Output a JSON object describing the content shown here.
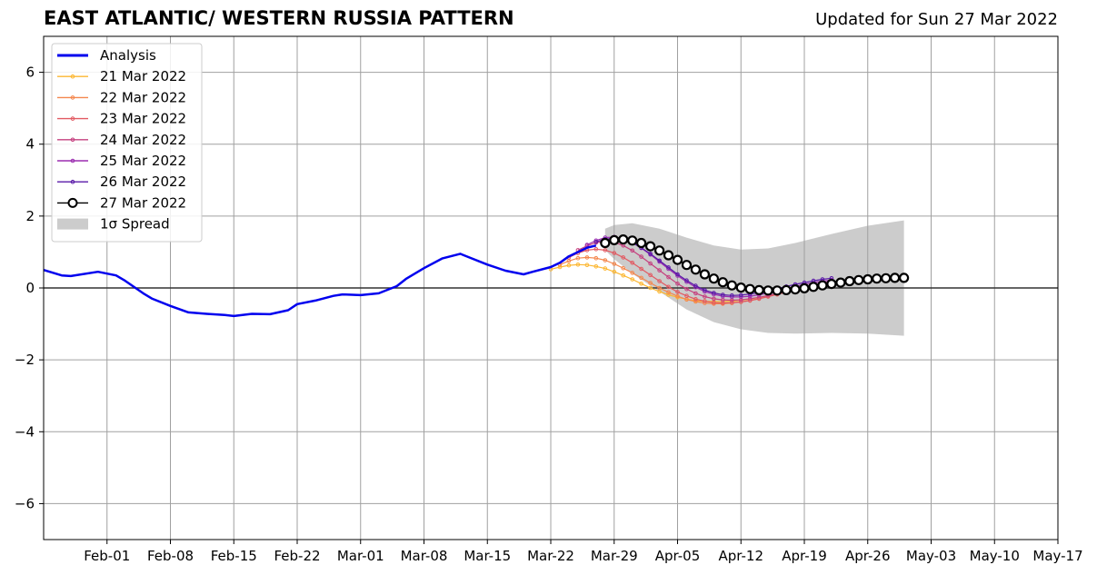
{
  "chart_data": {
    "type": "line",
    "title": "EAST ATLANTIC/ WESTERN RUSSIA PATTERN",
    "subtitle": "Updated for Sun 27 Mar 2022",
    "xlabel": "",
    "ylabel": "",
    "xlim": [
      "2022-01-25",
      "2022-05-17"
    ],
    "ylim": [
      -7,
      7
    ],
    "yticks": [
      -6,
      -4,
      -2,
      0,
      2,
      4,
      6
    ],
    "ytick_labels": [
      "−6",
      "−4",
      "−2",
      "0",
      "2",
      "4",
      "6"
    ],
    "xticks": [
      "2022-02-01",
      "2022-02-08",
      "2022-02-15",
      "2022-02-22",
      "2022-03-01",
      "2022-03-08",
      "2022-03-15",
      "2022-03-22",
      "2022-03-29",
      "2022-04-05",
      "2022-04-12",
      "2022-04-19",
      "2022-04-26",
      "2022-05-03",
      "2022-05-10",
      "2022-05-17"
    ],
    "xtick_labels": [
      "Feb-01",
      "Feb-08",
      "Feb-15",
      "Feb-22",
      "Mar-01",
      "Mar-08",
      "Mar-15",
      "Mar-22",
      "Mar-29",
      "Apr-05",
      "Apr-12",
      "Apr-19",
      "Apr-26",
      "May-03",
      "May-10",
      "May-17"
    ],
    "grid": true,
    "zero_line": true,
    "legend_position": "top-left",
    "analysis": {
      "name": "Analysis",
      "color": "#0000ee",
      "x": [
        "2022-01-25",
        "2022-01-27",
        "2022-01-28",
        "2022-01-31",
        "2022-02-02",
        "2022-02-03",
        "2022-02-05",
        "2022-02-06",
        "2022-02-08",
        "2022-02-10",
        "2022-02-12",
        "2022-02-14",
        "2022-02-15",
        "2022-02-17",
        "2022-02-19",
        "2022-02-21",
        "2022-02-22",
        "2022-02-24",
        "2022-02-26",
        "2022-02-27",
        "2022-03-01",
        "2022-03-03",
        "2022-03-05",
        "2022-03-06",
        "2022-03-08",
        "2022-03-10",
        "2022-03-12",
        "2022-03-13",
        "2022-03-15",
        "2022-03-17",
        "2022-03-19",
        "2022-03-20",
        "2022-03-22",
        "2022-03-23",
        "2022-03-24",
        "2022-03-26",
        "2022-03-27"
      ],
      "values": [
        0.5,
        0.35,
        0.33,
        0.45,
        0.35,
        0.2,
        -0.15,
        -0.3,
        -0.5,
        -0.68,
        -0.72,
        -0.75,
        -0.78,
        -0.72,
        -0.73,
        -0.62,
        -0.45,
        -0.35,
        -0.22,
        -0.18,
        -0.2,
        -0.15,
        0.05,
        0.25,
        0.55,
        0.82,
        0.95,
        0.85,
        0.65,
        0.48,
        0.38,
        0.45,
        0.58,
        0.7,
        0.88,
        1.12,
        1.18
      ]
    },
    "series": [
      {
        "name": "21 Mar 2022",
        "color": "#fcb732",
        "start": "2022-03-22",
        "values": [
          0.52,
          0.58,
          0.63,
          0.65,
          0.64,
          0.6,
          0.54,
          0.45,
          0.35,
          0.24,
          0.12,
          0.0,
          -0.1,
          -0.19,
          -0.26,
          -0.31,
          -0.35,
          -0.37,
          -0.38,
          -0.38,
          -0.37,
          -0.34,
          -0.31,
          -0.27,
          -0.22,
          -0.17,
          -0.11,
          -0.05,
          0.01,
          0.06,
          0.11,
          0.15
        ]
      },
      {
        "name": "22 Mar 2022",
        "color": "#f4874e",
        "start": "2022-03-23",
        "values": [
          0.65,
          0.75,
          0.83,
          0.85,
          0.83,
          0.77,
          0.67,
          0.55,
          0.42,
          0.28,
          0.14,
          0.0,
          -0.12,
          -0.23,
          -0.32,
          -0.38,
          -0.42,
          -0.44,
          -0.44,
          -0.42,
          -0.39,
          -0.35,
          -0.3,
          -0.24,
          -0.18,
          -0.11,
          -0.05,
          0.01,
          0.07,
          0.12,
          0.16
        ]
      },
      {
        "name": "23 Mar 2022",
        "color": "#e25a62",
        "start": "2022-03-24",
        "values": [
          0.85,
          0.97,
          1.05,
          1.08,
          1.05,
          0.97,
          0.85,
          0.7,
          0.53,
          0.36,
          0.19,
          0.03,
          -0.11,
          -0.22,
          -0.31,
          -0.37,
          -0.41,
          -0.42,
          -0.41,
          -0.39,
          -0.35,
          -0.3,
          -0.24,
          -0.18,
          -0.12,
          -0.06,
          0.0,
          0.06,
          0.11,
          0.15
        ]
      },
      {
        "name": "24 Mar 2022",
        "color": "#c5407f",
        "start": "2022-03-25",
        "values": [
          1.05,
          1.17,
          1.26,
          1.3,
          1.27,
          1.18,
          1.04,
          0.87,
          0.68,
          0.49,
          0.3,
          0.12,
          -0.03,
          -0.15,
          -0.24,
          -0.3,
          -0.33,
          -0.34,
          -0.33,
          -0.3,
          -0.26,
          -0.21,
          -0.15,
          -0.09,
          -0.03,
          0.03,
          0.09,
          0.14,
          0.18
        ]
      },
      {
        "name": "25 Mar 2022",
        "color": "#9b2db0",
        "start": "2022-03-26",
        "values": [
          1.2,
          1.32,
          1.4,
          1.42,
          1.37,
          1.26,
          1.11,
          0.93,
          0.73,
          0.53,
          0.34,
          0.17,
          0.02,
          -0.1,
          -0.18,
          -0.23,
          -0.25,
          -0.25,
          -0.23,
          -0.19,
          -0.14,
          -0.08,
          -0.02,
          0.04,
          0.1,
          0.15,
          0.19,
          0.22
        ]
      },
      {
        "name": "26 Mar 2022",
        "color": "#5a1aa8",
        "start": "2022-03-27",
        "values": [
          1.28,
          1.36,
          1.38,
          1.35,
          1.26,
          1.12,
          0.95,
          0.76,
          0.57,
          0.38,
          0.21,
          0.06,
          -0.06,
          -0.14,
          -0.19,
          -0.21,
          -0.2,
          -0.17,
          -0.13,
          -0.08,
          -0.02,
          0.04,
          0.1,
          0.15,
          0.2,
          0.24,
          0.27
        ]
      },
      {
        "name": "27 Mar 2022",
        "color": "#000000",
        "start": "2022-03-28",
        "values": [
          1.25,
          1.33,
          1.35,
          1.32,
          1.25,
          1.16,
          1.04,
          0.91,
          0.78,
          0.64,
          0.51,
          0.38,
          0.26,
          0.16,
          0.07,
          0.01,
          -0.03,
          -0.06,
          -0.07,
          -0.07,
          -0.06,
          -0.04,
          -0.01,
          0.03,
          0.07,
          0.11,
          0.15,
          0.19,
          0.22,
          0.24,
          0.26,
          0.27,
          0.28,
          0.28
        ]
      }
    ],
    "spread": {
      "name": "1σ Spread",
      "color": "#cccccc",
      "x": [
        "2022-03-28",
        "2022-03-29",
        "2022-03-31",
        "2022-04-03",
        "2022-04-06",
        "2022-04-09",
        "2022-04-12",
        "2022-04-15",
        "2022-04-18",
        "2022-04-22",
        "2022-04-26",
        "2022-04-30"
      ],
      "upper": [
        1.65,
        1.75,
        1.8,
        1.65,
        1.4,
        1.18,
        1.07,
        1.1,
        1.25,
        1.5,
        1.73,
        1.88
      ],
      "lower": [
        1.05,
        0.8,
        0.4,
        -0.1,
        -0.6,
        -0.95,
        -1.15,
        -1.25,
        -1.27,
        -1.25,
        -1.27,
        -1.33
      ]
    }
  }
}
